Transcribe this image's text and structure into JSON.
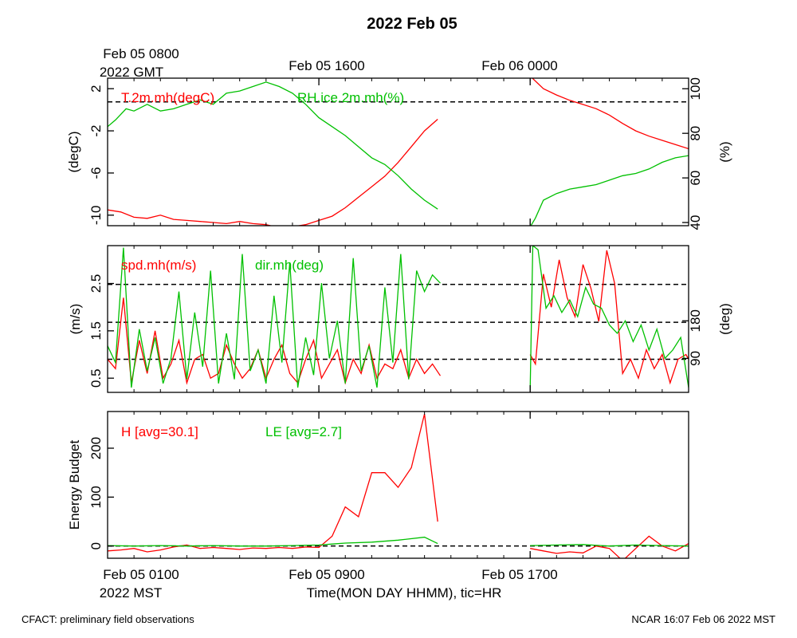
{
  "page": {
    "title": "2022 Feb 05",
    "top_time_labels": [
      {
        "line1": "Feb 05 0800",
        "line2": "2022 GMT"
      },
      {
        "line1": "Feb 05 1600",
        "line2": ""
      },
      {
        "line1": "Feb 06 0000",
        "line2": ""
      }
    ],
    "bottom_time_labels": [
      {
        "line1": "Feb 05 0100",
        "line2": "2022 MST"
      },
      {
        "line1": "Feb 05 0900",
        "line2": ""
      },
      {
        "line1": "Feb 05 1700",
        "line2": ""
      }
    ],
    "xlabel": "Time(MON DAY HHMM), tic=HR",
    "footer_left": "CFACT: preliminary field observations",
    "footer_right": "NCAR 16:07 Feb 06 2022 MST"
  },
  "colors": {
    "red": "#ff0000",
    "green": "#00c000",
    "axis": "#000000",
    "ref_line": "#000000"
  },
  "chart_data": [
    {
      "type": "line",
      "x_units": "hours since Feb 05 0100 MST",
      "xlim": [
        0,
        22
      ],
      "left_axis": {
        "label": "(degC)",
        "ylim": [
          -11,
          3
        ],
        "ticks": [
          2,
          -2,
          -6,
          -10
        ]
      },
      "right_axis": {
        "label": "(%)",
        "ylim": [
          38.57,
          104.75
        ],
        "ticks": [
          100,
          80,
          60,
          40
        ]
      },
      "reference_lines": [
        {
          "axis": "left",
          "value": 0.75
        }
      ],
      "series": [
        {
          "name": "T.2m.mh(degC)",
          "axis": "left",
          "color": "red",
          "segments": [
            {
              "x": [
                0,
                0.5,
                1,
                1.5,
                2,
                2.5,
                3,
                3.5,
                4,
                4.5,
                5,
                5.5,
                6,
                6.5,
                7,
                7.5,
                8,
                8.5,
                9,
                9.5,
                10,
                10.5,
                11,
                11.5,
                12,
                12.5
              ],
              "y": [
                -9.5,
                -9.7,
                -10.2,
                -10.3,
                -10.0,
                -10.4,
                -10.5,
                -10.6,
                -10.7,
                -10.8,
                -10.6,
                -10.8,
                -10.9,
                -11.2,
                -11.1,
                -10.9,
                -10.5,
                -10.1,
                -9.3,
                -8.3,
                -7.3,
                -6.3,
                -5.0,
                -3.5,
                -2.0,
                -0.9
              ]
            },
            {
              "x": [
                16,
                16.5,
                17,
                17.5,
                18,
                18.5,
                19,
                19.5,
                20,
                20.5,
                21,
                21.5,
                22
              ],
              "y": [
                3.2,
                2.0,
                1.4,
                0.9,
                0.5,
                0.1,
                -0.5,
                -1.3,
                -2.0,
                -2.5,
                -2.9,
                -3.3,
                -3.7
              ]
            }
          ]
        },
        {
          "name": "RH.ice.2m.mh(%)",
          "axis": "right",
          "color": "green",
          "segments": [
            {
              "x": [
                0,
                0.3,
                0.7,
                1,
                1.5,
                2,
                2.5,
                3,
                3.5,
                4,
                4.5,
                5,
                5.5,
                6,
                6.5,
                7,
                7.5,
                8,
                8.5,
                9,
                9.5,
                10,
                10.5,
                11,
                11.5,
                12,
                12.5
              ],
              "y": [
                83,
                86,
                91,
                90,
                93,
                90,
                91,
                93,
                95,
                93,
                98,
                99,
                101,
                103,
                101,
                98,
                93,
                87,
                83,
                79,
                74,
                69,
                66,
                61,
                55,
                50,
                46
              ]
            },
            {
              "x": [
                16,
                16.2,
                16.5,
                17,
                17.5,
                18,
                18.5,
                19,
                19.5,
                20,
                20.5,
                21,
                21.5,
                22
              ],
              "y": [
                38,
                42,
                50,
                53,
                55,
                56,
                57,
                59,
                61,
                62,
                64,
                67,
                69,
                70
              ]
            }
          ]
        }
      ]
    },
    {
      "type": "line",
      "x_units": "hours since Feb 05 0100 MST",
      "xlim": [
        0,
        22
      ],
      "left_axis": {
        "label": "(m/s)",
        "ylim": [
          0.2,
          3.3
        ],
        "ticks": [
          0.5,
          1.5,
          2.5
        ]
      },
      "right_axis": {
        "label": "(deg)",
        "ylim": [
          8.6,
          360
        ],
        "ticks": [
          90,
          180
        ]
      },
      "reference_lines": [
        {
          "axis": "left",
          "value": 0.9
        },
        {
          "axis": "left",
          "value": 1.68
        },
        {
          "axis": "left",
          "value": 2.48
        }
      ],
      "series": [
        {
          "name": "spd.mh(m/s)",
          "axis": "left",
          "color": "red",
          "segments": [
            {
              "x": [
                0,
                0.3,
                0.6,
                0.9,
                1.2,
                1.5,
                1.8,
                2.1,
                2.4,
                2.7,
                3,
                3.3,
                3.6,
                3.9,
                4.2,
                4.5,
                4.8,
                5.1,
                5.4,
                5.7,
                6,
                6.3,
                6.6,
                6.9,
                7.2,
                7.5,
                7.8,
                8.1,
                8.4,
                8.7,
                9,
                9.3,
                9.6,
                9.9,
                10.2,
                10.5,
                10.8,
                11.1,
                11.4,
                11.7,
                12,
                12.3,
                12.6
              ],
              "y": [
                0.9,
                0.7,
                2.2,
                0.4,
                1.3,
                0.6,
                1.5,
                0.5,
                0.8,
                1.3,
                0.4,
                0.9,
                1.0,
                0.5,
                0.6,
                1.2,
                0.8,
                0.5,
                0.7,
                1.1,
                0.5,
                0.9,
                1.2,
                0.6,
                0.4,
                0.9,
                1.3,
                0.5,
                0.8,
                1.1,
                0.4,
                0.9,
                0.6,
                1.2,
                0.5,
                0.8,
                0.7,
                1.1,
                0.5,
                0.9,
                0.6,
                0.8,
                0.55
              ]
            },
            {
              "x": [
                16,
                16.2,
                16.5,
                16.8,
                17.1,
                17.4,
                17.7,
                18,
                18.3,
                18.6,
                18.9,
                19.2,
                19.5,
                19.8,
                20.1,
                20.4,
                20.7,
                21,
                21.3,
                21.6,
                21.9,
                22
              ],
              "y": [
                1.0,
                0.8,
                2.7,
                2.0,
                3.0,
                2.2,
                1.8,
                2.9,
                2.4,
                1.7,
                3.2,
                2.5,
                0.6,
                0.9,
                0.5,
                1.1,
                0.7,
                1.0,
                0.4,
                0.9,
                1.0,
                0.9
              ]
            }
          ]
        },
        {
          "name": "dir.mh(deg)",
          "axis": "right",
          "color": "green",
          "segments": [
            {
              "x": [
                0,
                0.3,
                0.6,
                0.9,
                1.2,
                1.5,
                1.8,
                2.1,
                2.4,
                2.7,
                3,
                3.3,
                3.6,
                3.9,
                4.2,
                4.5,
                4.8,
                5.1,
                5.4,
                5.7,
                6,
                6.3,
                6.6,
                6.9,
                7.2,
                7.5,
                7.8,
                8.1,
                8.4,
                8.7,
                9,
                9.3,
                9.6,
                9.9,
                10.2,
                10.5,
                10.8,
                11.1,
                11.4,
                11.7,
                12,
                12.3,
                12.6
              ],
              "y": [
                120,
                80,
                355,
                20,
                160,
                60,
                140,
                30,
                90,
                250,
                40,
                200,
                70,
                300,
                30,
                150,
                40,
                340,
                60,
                110,
                30,
                240,
                80,
                320,
                20,
                140,
                50,
                270,
                90,
                180,
                30,
                330,
                60,
                120,
                20,
                260,
                80,
                340,
                40,
                300,
                250,
                290,
                270
              ]
            },
            {
              "x": [
                16,
                16.1,
                16.3,
                16.6,
                16.9,
                17.2,
                17.5,
                17.8,
                18.1,
                18.4,
                18.7,
                19,
                19.3,
                19.6,
                19.9,
                20.2,
                20.5,
                20.8,
                21.1,
                21.4,
                21.7,
                22
              ],
              "y": [
                15,
                360,
                350,
                210,
                240,
                200,
                230,
                190,
                260,
                220,
                210,
                170,
                150,
                180,
                130,
                170,
                110,
                160,
                90,
                110,
                140,
                20
              ]
            }
          ]
        }
      ]
    },
    {
      "type": "line",
      "x_units": "hours since Feb 05 0100 MST",
      "xlim": [
        0,
        22
      ],
      "left_axis": {
        "label": "Energy Budget",
        "ylim": [
          -25,
          275
        ],
        "ticks": [
          0,
          100,
          200
        ]
      },
      "reference_lines": [
        {
          "axis": "left",
          "value": 0
        }
      ],
      "series": [
        {
          "name": "H [avg=30.1]",
          "axis": "left",
          "color": "red",
          "segments": [
            {
              "x": [
                0,
                0.5,
                1,
                1.5,
                2,
                2.5,
                3,
                3.5,
                4,
                4.5,
                5,
                5.5,
                6,
                6.5,
                7,
                7.5,
                8,
                8.5,
                9,
                9.5,
                10,
                10.5,
                11,
                11.5,
                12,
                12.5
              ],
              "y": [
                -10,
                -8,
                -5,
                -12,
                -8,
                -2,
                2,
                -5,
                -3,
                -5,
                -7,
                -4,
                -5,
                -3,
                -5,
                -2,
                -3,
                20,
                80,
                60,
                150,
                150,
                120,
                160,
                270,
                50
              ]
            },
            {
              "x": [
                16,
                16.5,
                17,
                17.5,
                18,
                18.5,
                19,
                19.5,
                20,
                20.5,
                21,
                21.5,
                22
              ],
              "y": [
                -5,
                -10,
                -15,
                -12,
                -14,
                0,
                -5,
                -30,
                -5,
                20,
                0,
                -10,
                5
              ]
            }
          ]
        },
        {
          "name": "LE [avg=2.7]",
          "axis": "left",
          "color": "green",
          "segments": [
            {
              "x": [
                0,
                1,
                2,
                3,
                4,
                5,
                6,
                7,
                8,
                8.5,
                9,
                10,
                11,
                12,
                12.5
              ],
              "y": [
                1,
                0,
                1,
                0,
                1,
                0,
                0,
                1,
                2,
                4,
                6,
                8,
                12,
                18,
                5
              ]
            },
            {
              "x": [
                16,
                17,
                18,
                19,
                20,
                21,
                22
              ],
              "y": [
                1,
                2,
                3,
                0,
                2,
                1,
                0
              ]
            }
          ]
        }
      ]
    }
  ]
}
